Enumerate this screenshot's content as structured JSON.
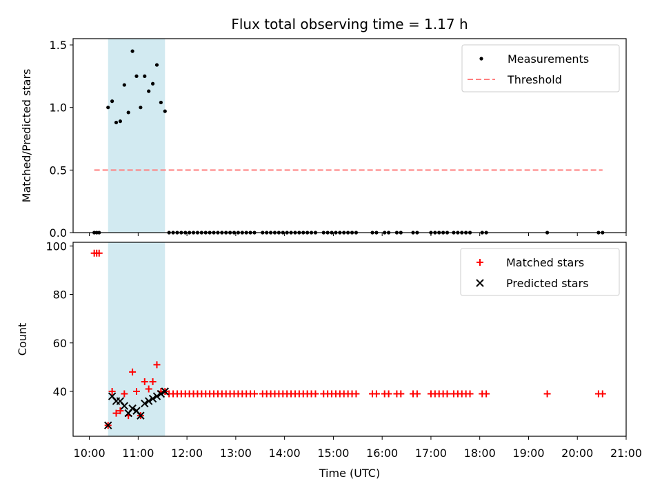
{
  "chart_data": {
    "title": "Flux total observing time = 1.17 h",
    "xlabel": "Time (UTC)",
    "xlim": [
      "09:40",
      "21:00"
    ],
    "xticks": [
      "10:00",
      "11:00",
      "12:00",
      "13:00",
      "14:00",
      "15:00",
      "16:00",
      "17:00",
      "18:00",
      "19:00",
      "20:00",
      "21:00"
    ],
    "highlight": {
      "start": "10:23",
      "end": "11:33",
      "color": "#add8e6"
    },
    "panels": [
      {
        "type": "scatter",
        "ylabel": "Matched/Predicted stars",
        "ylim": [
          0,
          1.55
        ],
        "yticks": [
          "0.0",
          "0.5",
          "1.0",
          "1.5"
        ],
        "legend_position": "top-right",
        "series": [
          {
            "name": "Measurements",
            "marker": "dot",
            "color": "#000000",
            "points": [
              [
                "10:06",
                0
              ],
              [
                "10:09",
                0
              ],
              [
                "10:12",
                0
              ],
              [
                "10:23",
                1.0
              ],
              [
                "10:28",
                1.05
              ],
              [
                "10:33",
                0.88
              ],
              [
                "10:38",
                0.89
              ],
              [
                "10:43",
                1.18
              ],
              [
                "10:48",
                0.96
              ],
              [
                "10:53",
                1.45
              ],
              [
                "10:58",
                1.25
              ],
              [
                "11:03",
                1.0
              ],
              [
                "11:08",
                1.25
              ],
              [
                "11:13",
                1.13
              ],
              [
                "11:18",
                1.19
              ],
              [
                "11:23",
                1.34
              ],
              [
                "11:28",
                1.04
              ],
              [
                "11:33",
                0.97
              ],
              [
                "11:38",
                0
              ],
              [
                "11:43",
                0
              ],
              [
                "11:48",
                0
              ],
              [
                "11:53",
                0
              ],
              [
                "11:58",
                0
              ],
              [
                "12:03",
                0
              ],
              [
                "12:08",
                0
              ],
              [
                "12:13",
                0
              ],
              [
                "12:18",
                0
              ],
              [
                "12:23",
                0
              ],
              [
                "12:28",
                0
              ],
              [
                "12:33",
                0
              ],
              [
                "12:38",
                0
              ],
              [
                "12:43",
                0
              ],
              [
                "12:48",
                0
              ],
              [
                "12:53",
                0
              ],
              [
                "12:58",
                0
              ],
              [
                "13:03",
                0
              ],
              [
                "13:08",
                0
              ],
              [
                "13:13",
                0
              ],
              [
                "13:18",
                0
              ],
              [
                "13:23",
                0
              ],
              [
                "13:33",
                0
              ],
              [
                "13:38",
                0
              ],
              [
                "13:43",
                0
              ],
              [
                "13:48",
                0
              ],
              [
                "13:53",
                0
              ],
              [
                "13:58",
                0
              ],
              [
                "14:03",
                0
              ],
              [
                "14:08",
                0
              ],
              [
                "14:13",
                0
              ],
              [
                "14:18",
                0
              ],
              [
                "14:23",
                0
              ],
              [
                "14:28",
                0
              ],
              [
                "14:33",
                0
              ],
              [
                "14:38",
                0
              ],
              [
                "14:48",
                0
              ],
              [
                "14:53",
                0
              ],
              [
                "14:58",
                0
              ],
              [
                "15:03",
                0
              ],
              [
                "15:08",
                0
              ],
              [
                "15:13",
                0
              ],
              [
                "15:18",
                0
              ],
              [
                "15:23",
                0
              ],
              [
                "15:28",
                0
              ],
              [
                "15:48",
                0
              ],
              [
                "15:53",
                0
              ],
              [
                "16:03",
                0
              ],
              [
                "16:08",
                0
              ],
              [
                "16:18",
                0
              ],
              [
                "16:23",
                0
              ],
              [
                "16:38",
                0
              ],
              [
                "16:43",
                0
              ],
              [
                "17:00",
                0
              ],
              [
                "17:05",
                0
              ],
              [
                "17:10",
                0
              ],
              [
                "17:15",
                0
              ],
              [
                "17:20",
                0
              ],
              [
                "17:28",
                0
              ],
              [
                "17:33",
                0
              ],
              [
                "17:38",
                0
              ],
              [
                "17:43",
                0
              ],
              [
                "17:48",
                0
              ],
              [
                "18:03",
                0
              ],
              [
                "18:08",
                0
              ],
              [
                "19:23",
                0
              ],
              [
                "20:26",
                0
              ],
              [
                "20:31",
                0
              ]
            ]
          },
          {
            "name": "Threshold",
            "marker": "dashed-line",
            "color": "#ff7f7f",
            "points": [
              [
                "10:06",
                0.5
              ],
              [
                "20:31",
                0.5
              ]
            ]
          }
        ]
      },
      {
        "type": "scatter",
        "ylabel": "Count",
        "ylim": [
          21.5,
          101.5
        ],
        "yticks": [
          "40",
          "60",
          "80",
          "100"
        ],
        "legend_position": "top-right",
        "series": [
          {
            "name": "Matched stars",
            "marker": "plus",
            "color": "#ff0000",
            "points": [
              [
                "10:06",
                97
              ],
              [
                "10:09",
                97
              ],
              [
                "10:12",
                97
              ],
              [
                "10:23",
                26
              ],
              [
                "10:28",
                40
              ],
              [
                "10:33",
                31
              ],
              [
                "10:38",
                32
              ],
              [
                "10:43",
                39
              ],
              [
                "10:48",
                30
              ],
              [
                "10:53",
                48
              ],
              [
                "10:58",
                40
              ],
              [
                "11:03",
                30
              ],
              [
                "11:08",
                44
              ],
              [
                "11:13",
                41
              ],
              [
                "11:18",
                44
              ],
              [
                "11:23",
                51
              ],
              [
                "11:28",
                40
              ],
              [
                "11:33",
                40
              ],
              [
                "11:38",
                39
              ],
              [
                "11:43",
                39
              ],
              [
                "11:48",
                39
              ],
              [
                "11:53",
                39
              ],
              [
                "11:58",
                39
              ],
              [
                "12:03",
                39
              ],
              [
                "12:08",
                39
              ],
              [
                "12:13",
                39
              ],
              [
                "12:18",
                39
              ],
              [
                "12:23",
                39
              ],
              [
                "12:28",
                39
              ],
              [
                "12:33",
                39
              ],
              [
                "12:38",
                39
              ],
              [
                "12:43",
                39
              ],
              [
                "12:48",
                39
              ],
              [
                "12:53",
                39
              ],
              [
                "12:58",
                39
              ],
              [
                "13:03",
                39
              ],
              [
                "13:08",
                39
              ],
              [
                "13:13",
                39
              ],
              [
                "13:18",
                39
              ],
              [
                "13:23",
                39
              ],
              [
                "13:33",
                39
              ],
              [
                "13:38",
                39
              ],
              [
                "13:43",
                39
              ],
              [
                "13:48",
                39
              ],
              [
                "13:53",
                39
              ],
              [
                "13:58",
                39
              ],
              [
                "14:03",
                39
              ],
              [
                "14:08",
                39
              ],
              [
                "14:13",
                39
              ],
              [
                "14:18",
                39
              ],
              [
                "14:23",
                39
              ],
              [
                "14:28",
                39
              ],
              [
                "14:33",
                39
              ],
              [
                "14:38",
                39
              ],
              [
                "14:48",
                39
              ],
              [
                "14:53",
                39
              ],
              [
                "14:58",
                39
              ],
              [
                "15:03",
                39
              ],
              [
                "15:08",
                39
              ],
              [
                "15:13",
                39
              ],
              [
                "15:18",
                39
              ],
              [
                "15:23",
                39
              ],
              [
                "15:28",
                39
              ],
              [
                "15:48",
                39
              ],
              [
                "15:53",
                39
              ],
              [
                "16:03",
                39
              ],
              [
                "16:08",
                39
              ],
              [
                "16:18",
                39
              ],
              [
                "16:23",
                39
              ],
              [
                "16:38",
                39
              ],
              [
                "16:43",
                39
              ],
              [
                "17:00",
                39
              ],
              [
                "17:05",
                39
              ],
              [
                "17:10",
                39
              ],
              [
                "17:15",
                39
              ],
              [
                "17:20",
                39
              ],
              [
                "17:28",
                39
              ],
              [
                "17:33",
                39
              ],
              [
                "17:38",
                39
              ],
              [
                "17:43",
                39
              ],
              [
                "17:48",
                39
              ],
              [
                "18:03",
                39
              ],
              [
                "18:08",
                39
              ],
              [
                "19:23",
                39
              ],
              [
                "20:26",
                39
              ],
              [
                "20:31",
                39
              ]
            ]
          },
          {
            "name": "Predicted stars",
            "marker": "x",
            "color": "#000000",
            "points": [
              [
                "10:23",
                26
              ],
              [
                "10:28",
                38
              ],
              [
                "10:33",
                36
              ],
              [
                "10:38",
                36
              ],
              [
                "10:43",
                34
              ],
              [
                "10:48",
                31
              ],
              [
                "10:53",
                33
              ],
              [
                "10:58",
                32
              ],
              [
                "11:03",
                30
              ],
              [
                "11:08",
                35
              ],
              [
                "11:13",
                36
              ],
              [
                "11:18",
                37
              ],
              [
                "11:23",
                38
              ],
              [
                "11:28",
                39
              ],
              [
                "11:33",
                40
              ]
            ]
          }
        ]
      }
    ]
  }
}
